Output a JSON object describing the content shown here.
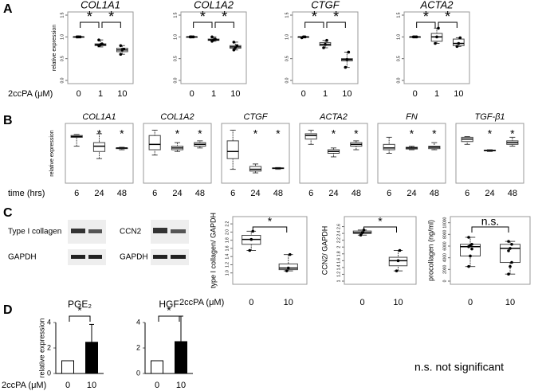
{
  "panels": [
    {
      "label": "A",
      "x_label": "2ccPA (μM)"
    },
    {
      "label": "B",
      "x_label": "time (hrs)"
    },
    {
      "label": "C",
      "x_label": "2ccPA (μM)"
    },
    {
      "label": "D",
      "x_label": "2ccPA (μM)"
    }
  ],
  "blots": [
    "Type I collagen",
    "GAPDH",
    "CCN2",
    "GAPDH"
  ],
  "note": "n.s. not significant",
  "chart_data": [
    {
      "type": "box",
      "title": "COL1A1",
      "ylabel": "relative expression",
      "categories": [
        "0",
        "1",
        "10"
      ],
      "ylim": [
        0,
        1.5
      ],
      "yticks": [
        {
          "value": 0,
          "label": "0.0"
        },
        {
          "value": 0.5,
          "label": "0.5"
        },
        {
          "value": 1,
          "label": "1.0"
        },
        {
          "value": 1.5,
          "label": "1.5"
        }
      ],
      "boxes": [
        {
          "min": 1,
          "q1": 1,
          "median": 1,
          "q3": 1,
          "max": 1,
          "points": [
            1,
            1,
            1,
            1
          ]
        },
        {
          "min": 0.77,
          "q1": 0.8,
          "median": 0.82,
          "q3": 0.84,
          "max": 0.93,
          "points": [
            0.8,
            0.82,
            0.84,
            0.93
          ]
        },
        {
          "min": 0.6,
          "q1": 0.66,
          "median": 0.7,
          "q3": 0.74,
          "max": 0.8,
          "points": [
            0.6,
            0.7,
            0.72,
            0.8
          ]
        }
      ],
      "annotations": [
        {
          "text": "*",
          "between": [
            "0",
            "1"
          ]
        },
        {
          "text": "*",
          "between": [
            "1",
            "10"
          ]
        }
      ]
    },
    {
      "type": "box",
      "title": "COL1A2",
      "categories": [
        "0",
        "1",
        "10"
      ],
      "ylim": [
        0,
        1.5
      ],
      "yticks": [
        {
          "value": 0,
          "label": "0.0"
        },
        {
          "value": 0.5,
          "label": "0.5"
        },
        {
          "value": 1,
          "label": "1.0"
        },
        {
          "value": 1.5,
          "label": "1.5"
        }
      ],
      "boxes": [
        {
          "min": 1,
          "q1": 1,
          "median": 1,
          "q3": 1,
          "max": 1,
          "points": [
            1,
            1,
            1,
            1
          ]
        },
        {
          "min": 0.9,
          "q1": 0.92,
          "median": 0.93,
          "q3": 0.95,
          "max": 1,
          "points": [
            0.9,
            0.93,
            0.95,
            1
          ]
        },
        {
          "min": 0.7,
          "q1": 0.74,
          "median": 0.77,
          "q3": 0.8,
          "max": 0.88,
          "points": [
            0.7,
            0.75,
            0.8,
            0.88
          ]
        }
      ],
      "annotations": [
        {
          "text": "*",
          "between": [
            "0",
            "1"
          ]
        },
        {
          "text": "*",
          "between": [
            "1",
            "10"
          ]
        }
      ]
    },
    {
      "type": "box",
      "title": "CTGF",
      "categories": [
        "0",
        "1",
        "10"
      ],
      "ylim": [
        0,
        1.5
      ],
      "yticks": [
        {
          "value": 0,
          "label": "0.0"
        },
        {
          "value": 0.5,
          "label": "0.5"
        },
        {
          "value": 1,
          "label": "1.0"
        },
        {
          "value": 1.5,
          "label": "1.5"
        }
      ],
      "boxes": [
        {
          "min": 0.98,
          "q1": 0.99,
          "median": 1,
          "q3": 1,
          "max": 1,
          "points": [
            0.98,
            1,
            1
          ]
        },
        {
          "min": 0.75,
          "q1": 0.8,
          "median": 0.83,
          "q3": 0.87,
          "max": 0.92,
          "points": [
            0.75,
            0.83,
            0.92
          ]
        },
        {
          "min": 0.3,
          "q1": 0.45,
          "median": 0.48,
          "q3": 0.5,
          "max": 0.65,
          "points": [
            0.3,
            0.48,
            0.65
          ]
        }
      ],
      "annotations": [
        {
          "text": "*",
          "between": [
            "0",
            "1"
          ]
        },
        {
          "text": "*",
          "between": [
            "1",
            "10"
          ]
        }
      ]
    },
    {
      "type": "box",
      "title": "ACTA2",
      "categories": [
        "0",
        "1",
        "10"
      ],
      "ylim": [
        0,
        1.5
      ],
      "yticks": [
        {
          "value": 0,
          "label": "0.0"
        },
        {
          "value": 0.5,
          "label": "0.5"
        },
        {
          "value": 1,
          "label": "1.0"
        },
        {
          "value": 1.5,
          "label": "1.5"
        }
      ],
      "boxes": [
        {
          "min": 1,
          "q1": 1,
          "median": 1,
          "q3": 1,
          "max": 1,
          "points": [
            1,
            1,
            1
          ]
        },
        {
          "min": 0.85,
          "q1": 0.9,
          "median": 1,
          "q3": 1.08,
          "max": 1.2,
          "points": [
            0.85,
            1,
            1.2
          ]
        },
        {
          "min": 0.78,
          "q1": 0.8,
          "median": 0.85,
          "q3": 0.95,
          "max": 0.98,
          "points": [
            0.78,
            0.85,
            0.98
          ]
        }
      ],
      "annotations": [
        {
          "text": "*",
          "between": [
            "0",
            "1"
          ]
        },
        {
          "text": "*",
          "between": [
            "1",
            "10"
          ]
        }
      ]
    },
    {
      "type": "box",
      "title": "COL1A1",
      "ylabel": "relative expression",
      "categories": [
        "6",
        "24",
        "48"
      ],
      "ylim": [
        0,
        1.5
      ],
      "boxes": [
        {
          "min": 0.95,
          "q1": 1.2,
          "median": 1.22,
          "q3": 1.25,
          "max": 1.28
        },
        {
          "min": 0.6,
          "q1": 0.8,
          "median": 0.95,
          "q3": 1.05,
          "max": 1.3
        },
        {
          "min": 0.85,
          "q1": 0.88,
          "median": 0.9,
          "q3": 0.9,
          "max": 0.92
        }
      ],
      "annotations": [
        {
          "text": "*",
          "at": "24"
        },
        {
          "text": "*",
          "at": "48"
        }
      ]
    },
    {
      "type": "box",
      "title": "COL1A2",
      "categories": [
        "6",
        "24",
        "48"
      ],
      "ylim": [
        0,
        1.5
      ],
      "boxes": [
        {
          "min": 0.7,
          "q1": 0.85,
          "median": 1,
          "q3": 1.25,
          "max": 1.4
        },
        {
          "min": 0.8,
          "q1": 0.85,
          "median": 0.9,
          "q3": 0.95,
          "max": 1.05
        },
        {
          "min": 0.9,
          "q1": 0.95,
          "median": 1,
          "q3": 1.05,
          "max": 1.1
        }
      ],
      "annotations": [
        {
          "text": "*",
          "at": "24"
        },
        {
          "text": "*",
          "at": "48"
        }
      ]
    },
    {
      "type": "box",
      "title": "CTGF",
      "categories": [
        "6",
        "24",
        "48"
      ],
      "ylim": [
        0,
        1.5
      ],
      "boxes": [
        {
          "min": 0.3,
          "q1": 0.6,
          "median": 0.8,
          "q3": 1.1,
          "max": 1.4
        },
        {
          "min": 0.2,
          "q1": 0.25,
          "median": 0.3,
          "q3": 0.38,
          "max": 0.45
        },
        {
          "min": 0.3,
          "q1": 0.32,
          "median": 0.33,
          "q3": 0.34,
          "max": 0.35
        }
      ],
      "annotations": [
        {
          "text": "*",
          "at": "24"
        },
        {
          "text": "*",
          "at": "48"
        }
      ]
    },
    {
      "type": "box",
      "title": "ACTA2",
      "categories": [
        "6",
        "24",
        "48"
      ],
      "ylim": [
        0,
        1.5
      ],
      "boxes": [
        {
          "min": 1,
          "q1": 1.15,
          "median": 1.25,
          "q3": 1.3,
          "max": 1.4
        },
        {
          "min": 0.65,
          "q1": 0.75,
          "median": 0.8,
          "q3": 0.85,
          "max": 0.9
        },
        {
          "min": 0.85,
          "q1": 0.95,
          "median": 1,
          "q3": 1.05,
          "max": 1.1
        }
      ],
      "annotations": [
        {
          "text": "*",
          "at": "24"
        },
        {
          "text": "*",
          "at": "48"
        }
      ]
    },
    {
      "type": "box",
      "title": "FN",
      "categories": [
        "6",
        "24",
        "48"
      ],
      "ylim": [
        0,
        1.5
      ],
      "boxes": [
        {
          "min": 0.75,
          "q1": 0.85,
          "median": 0.9,
          "q3": 1,
          "max": 1.2
        },
        {
          "min": 0.85,
          "q1": 0.87,
          "median": 0.9,
          "q3": 0.92,
          "max": 0.95
        },
        {
          "min": 0.85,
          "q1": 0.88,
          "median": 0.92,
          "q3": 0.95,
          "max": 1.05
        }
      ],
      "annotations": [
        {
          "text": "*",
          "at": "24"
        },
        {
          "text": "*",
          "at": "48"
        }
      ]
    },
    {
      "type": "box",
      "title": "TGF-β1",
      "categories": [
        "6",
        "24",
        "48"
      ],
      "ylim": [
        0,
        1.5
      ],
      "boxes": [
        {
          "min": 1,
          "q1": 1.08,
          "median": 1.15,
          "q3": 1.2,
          "max": 1.22
        },
        {
          "min": 0.8,
          "q1": 0.82,
          "median": 0.83,
          "q3": 0.84,
          "max": 0.85
        },
        {
          "min": 0.95,
          "q1": 1,
          "median": 1.05,
          "q3": 1.1,
          "max": 1.2
        }
      ],
      "annotations": [
        {
          "text": "*",
          "at": "24"
        },
        {
          "text": "*",
          "at": "48"
        }
      ]
    },
    {
      "type": "box",
      "ylabel": "type I collagen/ GAPDH",
      "categories": [
        "0",
        "10"
      ],
      "ylim": [
        0.8,
        2.3
      ],
      "yticks": [
        {
          "value": 1,
          "label": "1.0"
        },
        {
          "value": 1.2,
          "label": "1.2"
        },
        {
          "value": 1.4,
          "label": "1.4"
        },
        {
          "value": 1.6,
          "label": "1.6"
        },
        {
          "value": 1.8,
          "label": "1.8"
        },
        {
          "value": 2,
          "label": "2.0"
        },
        {
          "value": 2.2,
          "label": "2.2"
        }
      ],
      "boxes": [
        {
          "min": 1.55,
          "q1": 1.7,
          "median": 1.82,
          "q3": 1.92,
          "max": 2.02,
          "points": [
            1.55,
            1.82,
            2.02
          ]
        },
        {
          "min": 1.05,
          "q1": 1.08,
          "median": 1.12,
          "q3": 1.22,
          "max": 1.45,
          "points": [
            1.05,
            1.12,
            1.45
          ]
        }
      ],
      "annotations": [
        {
          "text": "*",
          "between": [
            "0",
            "10"
          ]
        }
      ]
    },
    {
      "type": "box",
      "ylabel": "CCN2/ GAPDH",
      "categories": [
        "0",
        "10"
      ],
      "ylim": [
        1,
        2.8
      ],
      "yticks": [
        1,
        1.2,
        1.4,
        1.6,
        1.8,
        2,
        2.2,
        2.4,
        2.6
      ],
      "boxes": [
        {
          "min": 2.35,
          "q1": 2.4,
          "median": 2.42,
          "q3": 2.47,
          "max": 2.5,
          "points": [
            2.35,
            2.42,
            2.5
          ]
        },
        {
          "min": 1.3,
          "q1": 1.45,
          "median": 1.6,
          "q3": 1.7,
          "max": 1.9,
          "points": [
            1.3,
            1.6,
            1.9
          ]
        }
      ],
      "annotations": [
        {
          "text": "*",
          "between": [
            "0",
            "10"
          ]
        }
      ]
    },
    {
      "type": "box",
      "ylabel": "procollagen (ng/ml)",
      "categories": [
        "0",
        "10"
      ],
      "ylim": [
        0,
        10500
      ],
      "yticks": [
        0,
        2000,
        4000,
        6000,
        8000,
        10000
      ],
      "boxes": [
        {
          "min": 2500,
          "q1": 4300,
          "median": 5900,
          "q3": 6300,
          "max": 7500,
          "points": [
            2500,
            4300,
            5500,
            5900,
            6100,
            6300,
            7500
          ]
        },
        {
          "min": 1200,
          "q1": 3200,
          "median": 5600,
          "q3": 6300,
          "max": 6800,
          "points": [
            1200,
            2500,
            3200,
            5200,
            5600,
            6300,
            6800
          ]
        }
      ],
      "annotations": [
        {
          "text": "n.s.",
          "between": [
            "0",
            "10"
          ]
        }
      ]
    },
    {
      "type": "bar",
      "title": "PGE₂",
      "ylabel": "relative expression",
      "categories": [
        "0",
        "10"
      ],
      "values": [
        1,
        2.45
      ],
      "errors": [
        0,
        1.4
      ],
      "colors": [
        "#ffffff",
        "#000000"
      ],
      "ylim": [
        0,
        4
      ],
      "yticks": [
        0,
        2,
        4
      ],
      "annotations": [
        {
          "text": "*",
          "between": [
            "0",
            "10"
          ]
        }
      ]
    },
    {
      "type": "bar",
      "title": "HGF",
      "categories": [
        "0",
        "10"
      ],
      "values": [
        1,
        2.5
      ],
      "errors": [
        0,
        2
      ],
      "colors": [
        "#ffffff",
        "#000000"
      ],
      "ylim": [
        0,
        4
      ],
      "yticks": [
        0,
        2,
        4
      ],
      "annotations": [
        {
          "text": "*",
          "between": [
            "0",
            "10"
          ]
        }
      ]
    }
  ]
}
